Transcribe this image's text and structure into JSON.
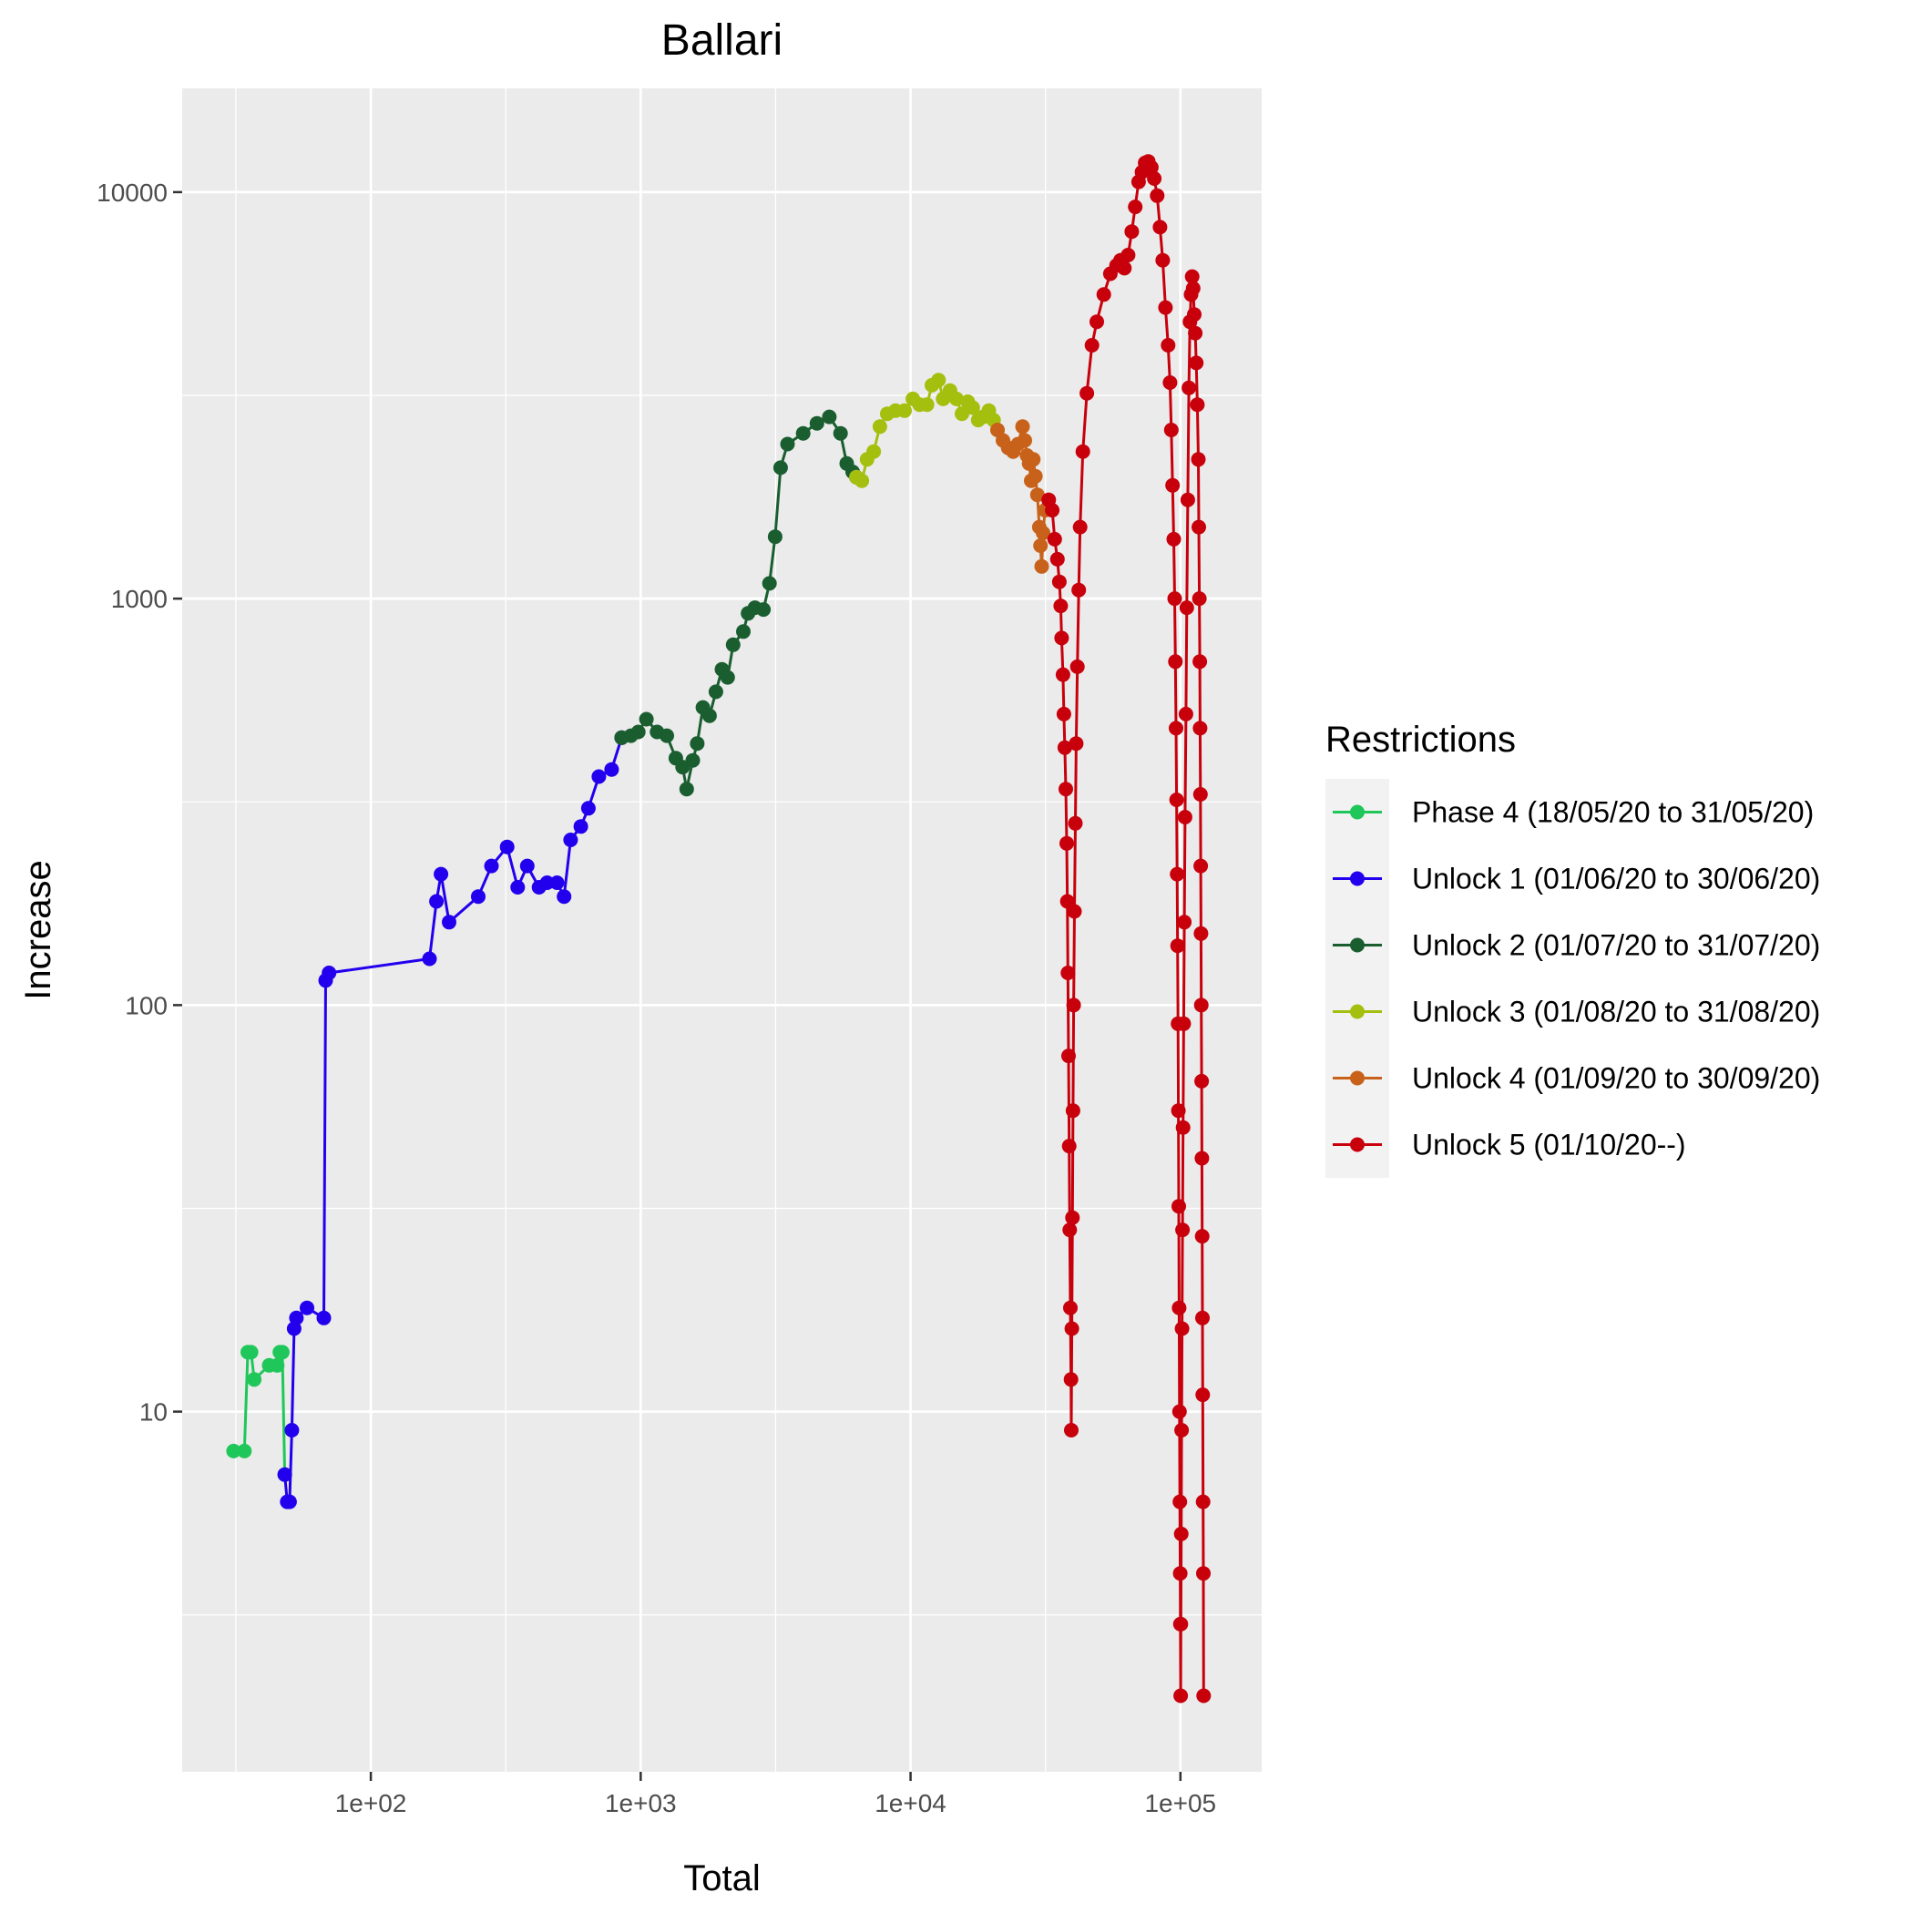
{
  "chart_data": {
    "type": "line",
    "title": "Ballari",
    "xlabel": "Total",
    "ylabel": "Increase",
    "x_scale": "log10",
    "y_scale": "log10",
    "xlim": [
      20,
      200000
    ],
    "ylim": [
      1.3,
      18000
    ],
    "x_ticks": [
      100,
      1000,
      10000,
      100000
    ],
    "x_tick_labels": [
      "1e+02",
      "1e+03",
      "1e+04",
      "1e+05"
    ],
    "y_ticks": [
      10,
      100,
      1000,
      10000
    ],
    "y_tick_labels": [
      "10",
      "100",
      "1000",
      "10000"
    ],
    "grid": true,
    "legend": {
      "title": "Restrictions",
      "position": "right"
    },
    "series": [
      {
        "name": "Phase 4 (18/05/20 to 31/05/20)",
        "color": "#1fc75a",
        "points": [
          [
            31,
            8
          ],
          [
            34,
            8
          ],
          [
            35,
            14
          ],
          [
            36,
            14
          ],
          [
            37,
            12
          ],
          [
            42,
            13
          ],
          [
            45,
            13
          ],
          [
            46,
            14
          ],
          [
            47,
            14
          ],
          [
            48,
            7
          ]
        ]
      },
      {
        "name": "Unlock 1 (01/06/20 to 30/06/20)",
        "color": "#2200ee",
        "points": [
          [
            48,
            7
          ],
          [
            49,
            6
          ],
          [
            50,
            6
          ],
          [
            51,
            9
          ],
          [
            52,
            16
          ],
          [
            53,
            17
          ],
          [
            58,
            18
          ],
          [
            67,
            17
          ],
          [
            68,
            115
          ],
          [
            70,
            120
          ],
          [
            165,
            130
          ],
          [
            175,
            180
          ],
          [
            182,
            210
          ],
          [
            195,
            160
          ],
          [
            250,
            185
          ],
          [
            280,
            220
          ],
          [
            320,
            245
          ],
          [
            350,
            195
          ],
          [
            380,
            220
          ],
          [
            420,
            195
          ],
          [
            450,
            200
          ],
          [
            490,
            200
          ],
          [
            520,
            185
          ],
          [
            550,
            255
          ],
          [
            600,
            275
          ],
          [
            640,
            305
          ],
          [
            700,
            365
          ],
          [
            780,
            380
          ],
          [
            850,
            455
          ]
        ]
      },
      {
        "name": "Unlock 2 (01/07/20 to 31/07/20)",
        "color": "#1a5e30",
        "points": [
          [
            850,
            455
          ],
          [
            920,
            460
          ],
          [
            980,
            470
          ],
          [
            1050,
            505
          ],
          [
            1150,
            470
          ],
          [
            1250,
            460
          ],
          [
            1350,
            405
          ],
          [
            1430,
            385
          ],
          [
            1480,
            340
          ],
          [
            1560,
            400
          ],
          [
            1620,
            440
          ],
          [
            1700,
            540
          ],
          [
            1800,
            515
          ],
          [
            1900,
            590
          ],
          [
            2000,
            670
          ],
          [
            2100,
            640
          ],
          [
            2200,
            770
          ],
          [
            2400,
            830
          ],
          [
            2500,
            920
          ],
          [
            2650,
            950
          ],
          [
            2850,
            940
          ],
          [
            3000,
            1090
          ],
          [
            3150,
            1420
          ],
          [
            3300,
            2100
          ],
          [
            3500,
            2400
          ],
          [
            4000,
            2550
          ],
          [
            4500,
            2700
          ],
          [
            5000,
            2800
          ],
          [
            5500,
            2550
          ],
          [
            5800,
            2150
          ],
          [
            6100,
            2050
          ],
          [
            6300,
            1990
          ]
        ]
      },
      {
        "name": "Unlock 3 (01/08/20 to 31/08/20)",
        "color": "#a5bf0e",
        "points": [
          [
            6300,
            1990
          ],
          [
            6600,
            1950
          ],
          [
            6900,
            2200
          ],
          [
            7300,
            2300
          ],
          [
            7700,
            2650
          ],
          [
            8200,
            2850
          ],
          [
            8800,
            2900
          ],
          [
            9500,
            2900
          ],
          [
            10200,
            3100
          ],
          [
            10800,
            3000
          ],
          [
            11500,
            3000
          ],
          [
            12000,
            3350
          ],
          [
            12700,
            3450
          ],
          [
            13200,
            3100
          ],
          [
            14000,
            3250
          ],
          [
            14800,
            3100
          ],
          [
            15500,
            2850
          ],
          [
            16300,
            3050
          ],
          [
            17000,
            2950
          ],
          [
            17800,
            2750
          ],
          [
            18600,
            2800
          ],
          [
            19500,
            2900
          ],
          [
            20300,
            2750
          ],
          [
            21000,
            2600
          ]
        ]
      },
      {
        "name": "Unlock 4 (01/09/20 to 30/09/20)",
        "color": "#c8621a",
        "points": [
          [
            21000,
            2600
          ],
          [
            22000,
            2450
          ],
          [
            23000,
            2350
          ],
          [
            24000,
            2300
          ],
          [
            25000,
            2400
          ],
          [
            26000,
            2650
          ],
          [
            26500,
            2450
          ],
          [
            27000,
            2250
          ],
          [
            27500,
            2150
          ],
          [
            28000,
            1950
          ],
          [
            28500,
            2200
          ],
          [
            29000,
            2000
          ],
          [
            29500,
            1800
          ],
          [
            30000,
            1500
          ],
          [
            30300,
            1350
          ],
          [
            30600,
            1200
          ],
          [
            31000,
            1450
          ],
          [
            31500,
            1650
          ],
          [
            32500,
            1750
          ]
        ]
      },
      {
        "name": "Unlock 5 (01/10/20--)",
        "color": "#c8000c",
        "points": [
          [
            32500,
            1750
          ],
          [
            33500,
            1650
          ],
          [
            34200,
            1400
          ],
          [
            35000,
            1250
          ],
          [
            35600,
            1100
          ],
          [
            36000,
            960
          ],
          [
            36300,
            800
          ],
          [
            36700,
            650
          ],
          [
            37000,
            520
          ],
          [
            37300,
            430
          ],
          [
            37600,
            340
          ],
          [
            37900,
            250
          ],
          [
            38100,
            180
          ],
          [
            38300,
            120
          ],
          [
            38500,
            75
          ],
          [
            38700,
            45
          ],
          [
            38900,
            28
          ],
          [
            39100,
            18
          ],
          [
            39300,
            12
          ],
          [
            39400,
            9
          ],
          [
            39600,
            16
          ],
          [
            39800,
            30
          ],
          [
            40000,
            55
          ],
          [
            40200,
            100
          ],
          [
            40500,
            170
          ],
          [
            40800,
            280
          ],
          [
            41100,
            440
          ],
          [
            41500,
            680
          ],
          [
            42000,
            1050
          ],
          [
            42500,
            1500
          ],
          [
            43500,
            2300
          ],
          [
            45000,
            3200
          ],
          [
            47000,
            4200
          ],
          [
            49000,
            4800
          ],
          [
            52000,
            5600
          ],
          [
            55000,
            6300
          ],
          [
            58000,
            6600
          ],
          [
            60000,
            6800
          ],
          [
            62000,
            6500
          ],
          [
            64000,
            7000
          ],
          [
            66000,
            8000
          ],
          [
            68000,
            9200
          ],
          [
            70000,
            10600
          ],
          [
            72000,
            11200
          ],
          [
            74000,
            11800
          ],
          [
            76000,
            11900
          ],
          [
            78000,
            11500
          ],
          [
            80000,
            10800
          ],
          [
            82000,
            9800
          ],
          [
            84000,
            8200
          ],
          [
            86000,
            6800
          ],
          [
            88000,
            5200
          ],
          [
            90000,
            4200
          ],
          [
            91500,
            3400
          ],
          [
            92500,
            2600
          ],
          [
            93500,
            1900
          ],
          [
            94500,
            1400
          ],
          [
            95200,
            1000
          ],
          [
            95800,
            700
          ],
          [
            96300,
            480
          ],
          [
            96800,
            320
          ],
          [
            97200,
            210
          ],
          [
            97600,
            140
          ],
          [
            98000,
            90
          ],
          [
            98300,
            55
          ],
          [
            98600,
            32
          ],
          [
            98900,
            18
          ],
          [
            99200,
            10
          ],
          [
            99500,
            6
          ],
          [
            99800,
            4
          ],
          [
            100000,
            3
          ],
          [
            100200,
            2
          ],
          [
            100400,
            3
          ],
          [
            100700,
            5
          ],
          [
            101000,
            9
          ],
          [
            101400,
            16
          ],
          [
            101800,
            28
          ],
          [
            102300,
            50
          ],
          [
            102800,
            90
          ],
          [
            103400,
            160
          ],
          [
            104000,
            290
          ],
          [
            104800,
            520
          ],
          [
            105600,
            950
          ],
          [
            106500,
            1750
          ],
          [
            107500,
            3300
          ],
          [
            108500,
            4800
          ],
          [
            109500,
            5600
          ],
          [
            110500,
            6200
          ],
          [
            111500,
            5800
          ],
          [
            112500,
            5000
          ],
          [
            113500,
            4500
          ],
          [
            114500,
            3800
          ],
          [
            115500,
            3000
          ],
          [
            116500,
            2200
          ],
          [
            117000,
            1500
          ],
          [
            117500,
            1000
          ],
          [
            118000,
            700
          ],
          [
            118300,
            480
          ],
          [
            118600,
            330
          ],
          [
            118900,
            220
          ],
          [
            119200,
            150
          ],
          [
            119500,
            100
          ],
          [
            119800,
            65
          ],
          [
            120100,
            42
          ],
          [
            120400,
            27
          ],
          [
            120700,
            17
          ],
          [
            121000,
            11
          ],
          [
            121300,
            6
          ],
          [
            121600,
            4
          ],
          [
            121900,
            2
          ]
        ]
      }
    ]
  }
}
